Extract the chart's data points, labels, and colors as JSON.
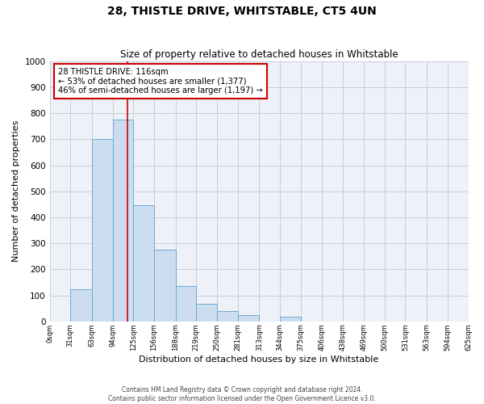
{
  "title": "28, THISTLE DRIVE, WHITSTABLE, CT5 4UN",
  "subtitle": "Size of property relative to detached houses in Whitstable",
  "xlabel": "Distribution of detached houses by size in Whitstable",
  "ylabel": "Number of detached properties",
  "footer_lines": [
    "Contains HM Land Registry data © Crown copyright and database right 2024.",
    "Contains public sector information licensed under the Open Government Licence v3.0."
  ],
  "bin_edges": [
    0,
    31,
    63,
    94,
    125,
    156,
    188,
    219,
    250,
    281,
    313,
    344,
    375,
    406,
    438,
    469,
    500,
    531,
    563,
    594,
    625
  ],
  "bin_heights": [
    0,
    125,
    700,
    775,
    445,
    275,
    135,
    68,
    40,
    25,
    0,
    18,
    0,
    0,
    0,
    0,
    0,
    0,
    0,
    0
  ],
  "bar_facecolor": "#ccddf0",
  "bar_edgecolor": "#6aaad4",
  "grid_color": "#c8cdd4",
  "background_color": "#eef2f8",
  "vline_x": 116,
  "vline_color": "#cc0000",
  "annotation_line1": "28 THISTLE DRIVE: 116sqm",
  "annotation_line2": "← 53% of detached houses are smaller (1,377)",
  "annotation_line3": "46% of semi-detached houses are larger (1,197) →",
  "annotation_box_color": "#cc0000",
  "ylim": [
    0,
    1000
  ],
  "ytick_step": 100,
  "tick_labels": [
    "0sqm",
    "31sqm",
    "63sqm",
    "94sqm",
    "125sqm",
    "156sqm",
    "188sqm",
    "219sqm",
    "250sqm",
    "281sqm",
    "313sqm",
    "344sqm",
    "375sqm",
    "406sqm",
    "438sqm",
    "469sqm",
    "500sqm",
    "531sqm",
    "563sqm",
    "594sqm",
    "625sqm"
  ]
}
